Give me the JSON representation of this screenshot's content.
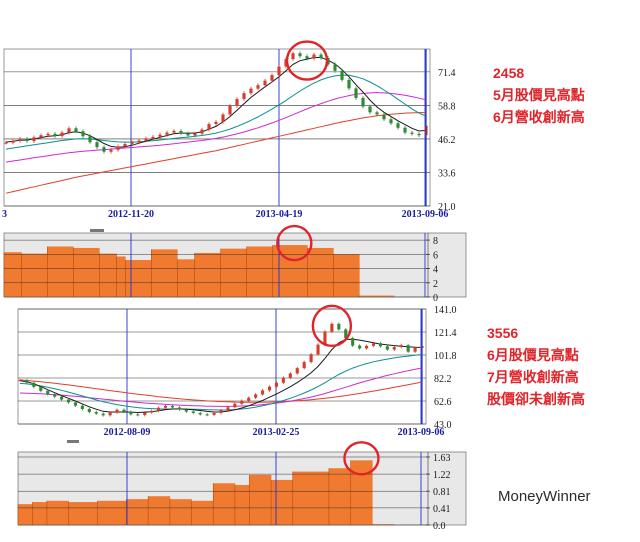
{
  "annotations": {
    "a": {
      "code": "2458",
      "line1": "5月股價見高點",
      "line2": "6月營收創新高"
    },
    "b": {
      "code": "3556",
      "line1": "6月股價見高點",
      "line2": "7月營收創新高",
      "line3": "股價卻未創新高"
    }
  },
  "brand": "MoneyWinner",
  "colors": {
    "price_up": "#d43c2c",
    "price_down": "#2e8a32",
    "ma_short": "#1a1a1a",
    "ma_mid": "#0b8f8f",
    "ma_long": "#d02ad0",
    "ma_longest": "#e0402a",
    "bar": "#f07a30",
    "bar_edge": "#b94a10",
    "marker": "#e0242a",
    "vline": "#2233cc"
  },
  "chart_data": [
    {
      "type": "line",
      "panel": "price-a",
      "ylim": [
        21.0,
        80.0
      ],
      "yticks": [
        "71.4",
        "58.8",
        "46.2",
        "33.6",
        "21.0"
      ],
      "xticks": [
        "2012-11-20",
        "2013-04-19",
        "2013-09-06"
      ],
      "left_edge_label": "3",
      "price": [
        44.8,
        45.5,
        46.2,
        45.4,
        46.8,
        47.6,
        48.1,
        47.3,
        48.6,
        50.2,
        49.1,
        47.2,
        45.0,
        43.1,
        41.4,
        42.1,
        43.4,
        44.3,
        44.9,
        45.6,
        46.4,
        47.0,
        47.8,
        48.6,
        49.2,
        48.3,
        47.5,
        48.2,
        49.7,
        51.8,
        52.6,
        55.4,
        58.6,
        61.2,
        63.4,
        65.1,
        66.4,
        68.1,
        70.2,
        73.4,
        76.2,
        78.4,
        77.3,
        76.4,
        77.9,
        76.6,
        74.2,
        71.8,
        68.4,
        65.2,
        61.6,
        58.4,
        56.2,
        55.4,
        53.6,
        52.1,
        50.4,
        48.6,
        48.1,
        47.6,
        51.2
      ],
      "ma_short": [
        45.0,
        45.3,
        45.7,
        45.8,
        46.2,
        46.7,
        47.2,
        47.4,
        47.8,
        48.6,
        48.9,
        48.4,
        47.4,
        46.0,
        44.5,
        43.4,
        43.1,
        43.3,
        43.8,
        44.6,
        45.4,
        46.1,
        46.8,
        47.5,
        48.2,
        48.4,
        48.4,
        48.4,
        48.9,
        49.9,
        50.9,
        52.6,
        54.6,
        57.0,
        59.4,
        61.8,
        63.8,
        65.8,
        67.6,
        69.6,
        71.8,
        74.2,
        75.6,
        76.2,
        76.8,
        76.8,
        75.8,
        74.4,
        72.2,
        69.6,
        66.6,
        63.8,
        60.8,
        58.2,
        56.2,
        54.6,
        53.0,
        51.6,
        50.2,
        49.2,
        49.4
      ],
      "ma_mid": [
        42.4,
        42.8,
        43.2,
        43.6,
        44.0,
        44.4,
        44.8,
        45.2,
        45.6,
        45.9,
        46.2,
        46.3,
        46.2,
        45.9,
        45.6,
        45.3,
        45.1,
        45.0,
        45.0,
        45.1,
        45.3,
        45.5,
        45.8,
        46.1,
        46.4,
        46.7,
        46.9,
        47.2,
        47.5,
        47.9,
        48.4,
        49.1,
        49.9,
        50.9,
        52.0,
        53.2,
        54.5,
        55.9,
        57.4,
        59.0,
        60.7,
        62.5,
        64.2,
        65.8,
        67.2,
        68.4,
        69.3,
        69.9,
        70.2,
        70.1,
        69.6,
        68.8,
        67.6,
        66.2,
        64.6,
        62.9,
        61.1,
        59.3,
        57.5,
        55.9,
        54.8
      ],
      "ma_long": [
        37.5,
        37.9,
        38.3,
        38.7,
        39.1,
        39.5,
        39.9,
        40.3,
        40.6,
        41.0,
        41.3,
        41.6,
        41.8,
        42.0,
        42.2,
        42.4,
        42.6,
        42.8,
        43.0,
        43.2,
        43.4,
        43.6,
        43.8,
        44.1,
        44.4,
        44.7,
        45.0,
        45.3,
        45.6,
        46.0,
        46.4,
        46.9,
        47.5,
        48.1,
        48.8,
        49.6,
        50.4,
        51.3,
        52.2,
        53.2,
        54.2,
        55.3,
        56.4,
        57.5,
        58.5,
        59.5,
        60.4,
        61.2,
        61.9,
        62.5,
        63.0,
        63.3,
        63.5,
        63.6,
        63.5,
        63.3,
        63.0,
        62.6,
        62.1,
        61.5,
        60.9
      ],
      "ma_longest": [
        25.8,
        26.4,
        27.0,
        27.6,
        28.2,
        28.8,
        29.4,
        30.0,
        30.6,
        31.2,
        31.8,
        32.3,
        32.8,
        33.3,
        33.8,
        34.3,
        34.8,
        35.3,
        35.8,
        36.3,
        36.8,
        37.3,
        37.8,
        38.3,
        38.8,
        39.3,
        39.8,
        40.3,
        40.8,
        41.3,
        41.8,
        42.4,
        43.0,
        43.6,
        44.2,
        44.8,
        45.4,
        46.0,
        46.6,
        47.2,
        47.8,
        48.4,
        49.0,
        49.6,
        50.2,
        50.8,
        51.4,
        52.0,
        52.6,
        53.1,
        53.6,
        54.1,
        54.5,
        54.9,
        55.2,
        55.5,
        55.7,
        55.9,
        56.0,
        56.1,
        56.1
      ],
      "marker_index": 43
    },
    {
      "type": "bar",
      "panel": "revenue-a",
      "ylim": [
        0,
        9
      ],
      "yticks": [
        "8",
        "6",
        "4",
        "2",
        "0"
      ],
      "values": [
        6.3,
        6.3,
        6.1,
        6.1,
        6.1,
        7.1,
        7.1,
        7.1,
        6.9,
        6.9,
        6.9,
        6.1,
        6.1,
        5.7,
        5.2,
        5.2,
        5.2,
        6.7,
        6.7,
        6.7,
        5.3,
        5.3,
        6.2,
        6.2,
        6.2,
        6.8,
        6.8,
        6.8,
        7.1,
        7.1,
        7.1,
        7.3,
        7.3,
        7.3,
        7.3,
        6.9,
        6.9,
        6.9,
        6.0,
        6.0,
        6.0,
        0.2,
        0.2,
        0.2,
        0.2
      ],
      "marker_index": 33
    },
    {
      "type": "line",
      "panel": "price-b",
      "ylim": [
        43.0,
        141.0
      ],
      "yticks": [
        "141.0",
        "121.4",
        "101.8",
        "82.2",
        "62.6",
        "43.0"
      ],
      "xticks": [
        "2012-08-09",
        "2013-02-25",
        "2013-09-06"
      ],
      "price": [
        80.4,
        78.1,
        74.6,
        71.2,
        68.4,
        66.3,
        63.8,
        61.4,
        58.6,
        55.8,
        53.2,
        51.8,
        50.4,
        52.6,
        55.1,
        53.4,
        51.2,
        50.6,
        52.8,
        54.2,
        56.8,
        58.4,
        57.1,
        55.3,
        53.6,
        52.4,
        51.2,
        50.8,
        52.4,
        54.6,
        57.3,
        60.2,
        62.8,
        65.4,
        68.2,
        71.6,
        74.8,
        78.2,
        82.4,
        86.1,
        90.6,
        95.8,
        102.4,
        110.6,
        121.8,
        128.4,
        123.6,
        116.2,
        109.8,
        107.4,
        109.6,
        111.8,
        109.2,
        106.4,
        108.6,
        110.2,
        104.6,
        107.8,
        109.4
      ],
      "ma_short": [
        79.8,
        79.0,
        77.3,
        74.9,
        72.2,
        69.7,
        67.2,
        64.9,
        62.6,
        60.1,
        57.7,
        55.6,
        53.8,
        53.2,
        53.2,
        53.2,
        53.1,
        52.8,
        53.1,
        53.5,
        54.3,
        55.3,
        55.8,
        55.9,
        55.6,
        55.2,
        54.5,
        53.7,
        53.2,
        53.3,
        54.0,
        55.1,
        56.6,
        58.5,
        60.7,
        63.1,
        65.8,
        68.5,
        71.6,
        74.8,
        78.3,
        82.3,
        86.6,
        92.0,
        99.0,
        106.4,
        112.2,
        115.1,
        115.2,
        114.5,
        113.4,
        112.2,
        111.1,
        110.4,
        109.8,
        109.3,
        108.8,
        108.4,
        108.3
      ],
      "ma_mid": [
        77.6,
        77.2,
        76.5,
        75.5,
        74.4,
        73.1,
        71.7,
        70.2,
        68.6,
        66.9,
        65.2,
        63.5,
        61.9,
        60.6,
        59.5,
        58.5,
        57.7,
        57.0,
        56.5,
        56.1,
        55.9,
        55.8,
        55.8,
        55.8,
        55.7,
        55.6,
        55.4,
        55.2,
        55.0,
        54.9,
        55.0,
        55.3,
        55.8,
        56.5,
        57.4,
        58.5,
        59.8,
        61.3,
        63.0,
        64.9,
        67.0,
        69.4,
        72.0,
        74.9,
        78.2,
        81.8,
        85.2,
        88.1,
        90.6,
        92.7,
        94.5,
        96.0,
        97.2,
        98.3,
        99.3,
        100.2,
        100.9,
        101.6,
        102.2
      ],
      "ma_long": [
        69.4,
        69.2,
        69.0,
        68.7,
        68.4,
        68.0,
        67.6,
        67.1,
        66.6,
        66.0,
        65.4,
        64.8,
        64.2,
        63.6,
        63.0,
        62.4,
        61.9,
        61.4,
        60.9,
        60.5,
        60.1,
        59.7,
        59.4,
        59.1,
        58.8,
        58.6,
        58.4,
        58.2,
        58.1,
        58.0,
        58.0,
        58.1,
        58.3,
        58.6,
        59.0,
        59.5,
        60.1,
        60.8,
        61.6,
        62.5,
        63.5,
        64.7,
        66.0,
        67.4,
        69.0,
        70.8,
        72.6,
        74.4,
        76.2,
        78.0,
        79.7,
        81.3,
        82.9,
        84.4,
        85.8,
        87.1,
        88.4,
        89.6,
        90.7
      ],
      "ma_longest": [
        80.6,
        80.1,
        79.6,
        79.0,
        78.4,
        77.7,
        77.0,
        76.3,
        75.5,
        74.7,
        73.9,
        73.1,
        72.3,
        71.5,
        70.7,
        69.9,
        69.1,
        68.4,
        67.7,
        67.0,
        66.3,
        65.7,
        65.1,
        64.5,
        64.0,
        63.5,
        63.1,
        62.7,
        62.4,
        62.1,
        61.9,
        61.7,
        61.6,
        61.5,
        61.5,
        61.6,
        61.7,
        61.9,
        62.1,
        62.4,
        62.8,
        63.2,
        63.7,
        64.3,
        64.9,
        65.6,
        66.4,
        67.2,
        68.1,
        69.0,
        70.0,
        71.0,
        72.1,
        73.2,
        74.3,
        75.4,
        76.5,
        77.6,
        78.7
      ],
      "marker_index": 45
    },
    {
      "type": "bar",
      "panel": "revenue-b",
      "ylim": [
        0,
        1.75
      ],
      "yticks": [
        "1.63",
        "1.22",
        "0.81",
        "0.41",
        "0.0"
      ],
      "values": [
        0.5,
        0.5,
        0.55,
        0.55,
        0.58,
        0.58,
        0.58,
        0.55,
        0.55,
        0.55,
        0.55,
        0.58,
        0.58,
        0.58,
        0.58,
        0.62,
        0.62,
        0.62,
        0.69,
        0.69,
        0.69,
        0.62,
        0.62,
        0.62,
        0.58,
        0.58,
        0.58,
        1.0,
        1.0,
        1.0,
        0.96,
        0.96,
        1.2,
        1.2,
        1.2,
        1.08,
        1.08,
        1.08,
        1.28,
        1.28,
        1.28,
        1.28,
        1.28,
        1.36,
        1.36,
        1.36,
        1.55,
        1.55,
        1.55,
        0.02,
        0.02,
        0.02
      ],
      "marker_index": 47
    }
  ]
}
